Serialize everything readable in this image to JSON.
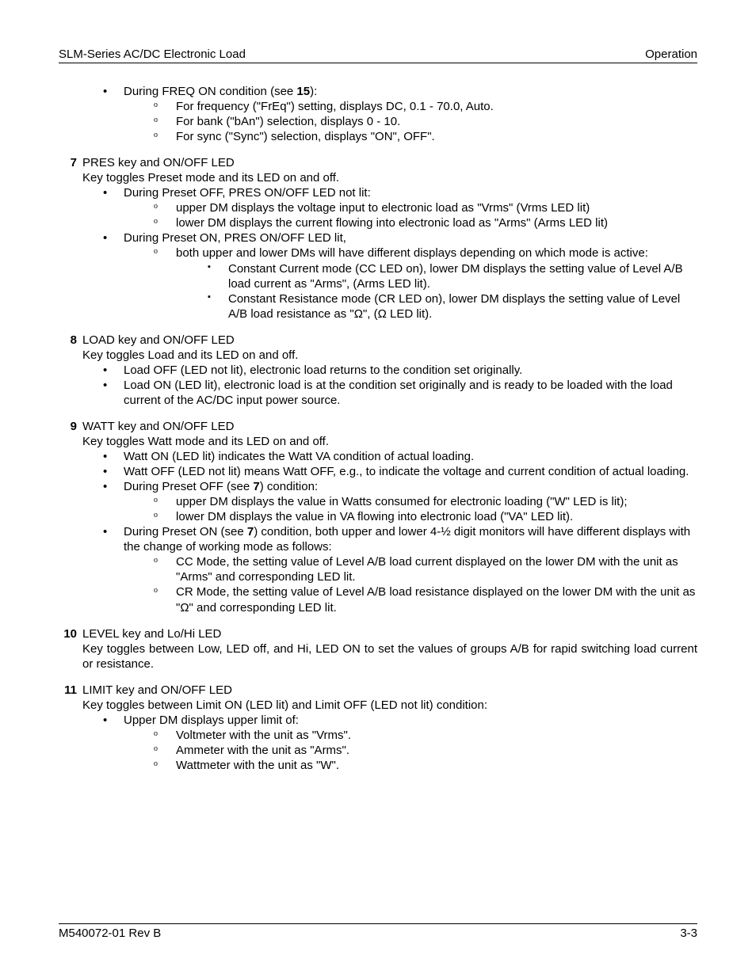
{
  "header": {
    "left": "SLM-Series AC/DC Electronic Load",
    "right": "Operation"
  },
  "footer": {
    "left": "M540072-01 Rev B",
    "right": "3-3"
  },
  "intro": {
    "bullet_lead": "During FREQ ON condition (see ",
    "bullet_ref": "15",
    "bullet_tail": "):",
    "c1": "For frequency (\"FrEq\") setting, displays DC, 0.1 - 70.0, Auto.",
    "c2": "For bank (\"bAn\") selection, displays 0 - 10.",
    "c3": "For sync (\"Sync\") selection, displays \"ON\", OFF\"."
  },
  "s7": {
    "num": "7",
    "title": "PRES key and ON/OFF LED",
    "desc": "Key toggles Preset mode and its LED on and off.",
    "b1": "During Preset OFF, PRES ON/OFF LED not lit:",
    "b1c1": "upper DM displays the voltage input to electronic load as \"Vrms\" (Vrms LED lit)",
    "b1c2": "lower DM displays the current flowing into electronic load as \"Arms\" (Arms LED lit)",
    "b2": "During Preset ON, PRES ON/OFF LED lit,",
    "b2c1": "both upper and lower DMs will have different displays depending on which mode is active:",
    "b2c1s1": "Constant Current mode (CC LED on), lower DM displays the setting value of Level A/B load current as \"Arms\", (Arms LED lit).",
    "b2c1s2": "Constant Resistance mode (CR LED on), lower DM displays the setting value of Level A/B load resistance as \"Ω\", (Ω LED lit)."
  },
  "s8": {
    "num": "8",
    "title": "LOAD key and ON/OFF LED",
    "desc": "Key toggles Load and its LED on and off.",
    "b1": "Load OFF (LED not lit), electronic load returns to the condition set originally.",
    "b2": "Load ON (LED lit), electronic load is at the condition set originally and is ready to be loaded with the load current of the AC/DC input power source."
  },
  "s9": {
    "num": "9",
    "title": "WATT key and ON/OFF LED",
    "desc": "Key toggles Watt mode and its LED on and off.",
    "b1": "Watt ON (LED lit) indicates the Watt VA condition of actual loading.",
    "b2": "Watt OFF (LED not lit) means Watt OFF, e.g., to indicate the voltage and current condition of actual loading.",
    "b3_lead": "During Preset OFF (see ",
    "b3_ref": "7",
    "b3_tail": ") condition:",
    "b3c1": "upper DM displays the value in Watts consumed for electronic loading (\"W\" LED is lit);",
    "b3c2": "lower DM displays the value in VA flowing into electronic load (\"VA\" LED lit).",
    "b4_lead": "During Preset ON (see ",
    "b4_ref": "7",
    "b4_tail": ") condition, both upper and lower 4-½ digit monitors will have different displays with the change of working mode as follows:",
    "b4c1": "CC Mode, the setting value of Level A/B load current displayed on the lower DM with the unit as \"Arms\" and corresponding LED lit.",
    "b4c2": "CR Mode, the setting value of Level A/B load resistance displayed on the lower DM with the unit as \"Ω\" and corresponding LED lit."
  },
  "s10": {
    "num": "10",
    "title": "LEVEL key and Lo/Hi LED",
    "desc": "Key toggles between Low, LED off, and Hi, LED ON to set the values of groups A/B for rapid switching load current or resistance."
  },
  "s11": {
    "num": "11",
    "title": "LIMIT key and ON/OFF LED",
    "desc": "Key toggles between Limit ON (LED lit) and Limit OFF (LED not lit) condition:",
    "b1": "Upper DM displays upper limit of:",
    "b1c1": "Voltmeter with the unit as \"Vrms\".",
    "b1c2": "Ammeter with the unit as \"Arms\".",
    "b1c3": "Wattmeter with the unit as \"W\"."
  }
}
